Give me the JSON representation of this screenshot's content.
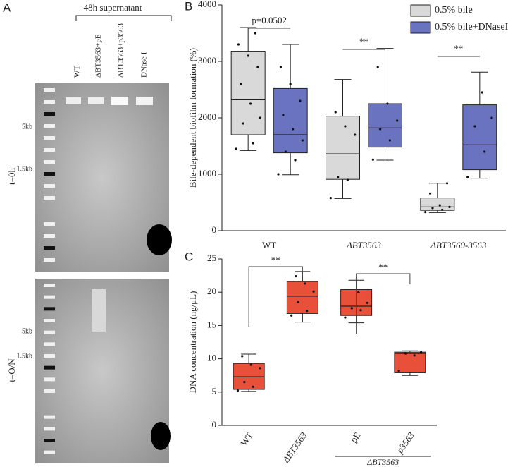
{
  "gel": {
    "label": "A",
    "header": "48h supernatant",
    "lanes": [
      "WT",
      "ΔBT3563+pE",
      "ΔBT3563+p3563",
      "DNase I"
    ],
    "rows": [
      {
        "time": "t=0h",
        "markers": [
          "5kb",
          "1.5kb"
        ]
      },
      {
        "time": "t=O/N",
        "markers": [
          "5kb",
          "1.5kb"
        ]
      }
    ]
  },
  "chart_data": [
    {
      "type": "box",
      "label": "B",
      "ylabel": "Bile-dependent biofilm formation (%)",
      "categories": [
        "WT",
        "ΔBT3563",
        "ΔBT3560-3563"
      ],
      "ylim": [
        0,
        4000
      ],
      "yticks": [
        0,
        1000,
        2000,
        3000,
        4000
      ],
      "legend": "top-right",
      "annotations": [
        "p=0.0502",
        "**",
        "**"
      ],
      "series": [
        {
          "name": "0.5% bile",
          "color": "#d9d9d9",
          "min": [
            1420,
            570,
            320
          ],
          "q1": [
            1700,
            910,
            360
          ],
          "median": [
            2320,
            1360,
            420
          ],
          "q3": [
            3170,
            2030,
            580
          ],
          "max": [
            3600,
            2680,
            840
          ],
          "points": [
            [
              1450,
              1550,
              1900,
              2000,
              2250,
              2600,
              2900,
              3100,
              3300,
              3500
            ],
            [
              580,
              900,
              950,
              1700,
              1850,
              2100
            ],
            [
              330,
              370,
              400,
              420,
              450,
              660,
              840
            ]
          ]
        },
        {
          "name": "0.5% bile+DNaseI",
          "color": "#6a73c0",
          "min": [
            990,
            1250,
            930
          ],
          "q1": [
            1380,
            1480,
            1080
          ],
          "median": [
            1700,
            1820,
            1520
          ],
          "q3": [
            2520,
            2250,
            2230
          ],
          "max": [
            3300,
            3230,
            2810
          ],
          "points": [
            [
              1000,
              1250,
              1400,
              1600,
              1800,
              2050,
              2300,
              2600,
              2900
            ],
            [
              1260,
              1600,
              1800,
              1950,
              2250,
              2900
            ],
            [
              950,
              1400,
              1850,
              2000,
              2450
            ]
          ]
        }
      ]
    },
    {
      "type": "box",
      "label": "C",
      "ylabel": "DNA concentration (ng/μL)",
      "categories": [
        "WT",
        "ΔBT3563",
        "pE",
        "p3563"
      ],
      "group_label": "ΔBT3563",
      "ylim": [
        0,
        25
      ],
      "yticks": [
        0,
        5,
        10,
        15,
        20,
        25
      ],
      "annotations": [
        "**",
        "**"
      ],
      "series": [
        {
          "color": "#e8503a",
          "min": [
            5.1,
            15.5,
            15.4,
            7.5
          ],
          "q1": [
            5.4,
            16.8,
            16.5,
            7.9
          ],
          "median": [
            7.3,
            19.4,
            17.9,
            10.8
          ],
          "q3": [
            9.3,
            21.6,
            20.4,
            11.0
          ],
          "max": [
            10.7,
            23.1,
            21.8,
            11.2
          ],
          "points": [
            [
              5.2,
              5.8,
              6.5,
              8.6,
              9.1,
              10.4
            ],
            [
              16.5,
              17.2,
              18.5,
              20.1,
              21.3,
              22.4
            ],
            [
              16.2,
              17.3,
              17.6,
              18.4,
              20.0
            ],
            [
              8.2,
              10.5,
              10.8,
              11.0
            ]
          ]
        }
      ]
    }
  ]
}
